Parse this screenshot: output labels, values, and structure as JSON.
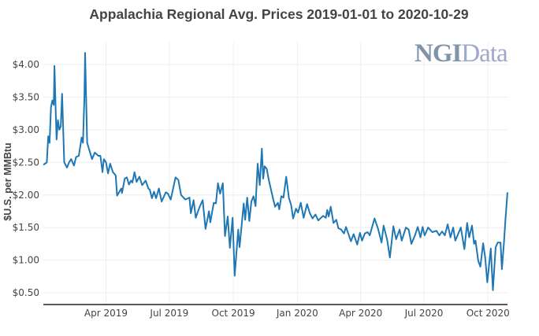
{
  "chart_data": {
    "type": "line",
    "title": "Appalachia Regional Avg. Prices 2019-01-01 to 2020-10-29",
    "xlabel": "",
    "ylabel": "$U.S. per MMBtu",
    "xlim": [
      "2019-01-01",
      "2020-10-29"
    ],
    "ylim": [
      0.32,
      4.35
    ],
    "grid": true,
    "line_color": "#1f77b4",
    "y_ticks": [
      {
        "value": 4.0,
        "label": "$4.00"
      },
      {
        "value": 3.5,
        "label": "$3.50"
      },
      {
        "value": 3.0,
        "label": "$3.00"
      },
      {
        "value": 2.5,
        "label": "$2.50"
      },
      {
        "value": 2.0,
        "label": "$2.00"
      },
      {
        "value": 1.5,
        "label": "$1.50"
      },
      {
        "value": 1.0,
        "label": "$1.00"
      },
      {
        "value": 0.5,
        "label": "$0.50"
      }
    ],
    "x_ticks": [
      {
        "value": "2019-04-01",
        "label": "Apr 2019"
      },
      {
        "value": "2019-07-01",
        "label": "Jul 2019"
      },
      {
        "value": "2019-10-01",
        "label": "Oct 2019"
      },
      {
        "value": "2020-01-01",
        "label": "Jan 2020"
      },
      {
        "value": "2020-04-01",
        "label": "Apr 2020"
      },
      {
        "value": "2020-07-01",
        "label": "Jul 2020"
      },
      {
        "value": "2020-10-01",
        "label": "Oct 2020"
      }
    ],
    "x": [
      "2019-01-01",
      "2019-01-06",
      "2019-01-08",
      "2019-01-10",
      "2019-01-12",
      "2019-01-14",
      "2019-01-16",
      "2019-01-17",
      "2019-01-19",
      "2019-01-20",
      "2019-01-22",
      "2019-01-24",
      "2019-01-26",
      "2019-01-28",
      "2019-01-31",
      "2019-02-04",
      "2019-02-07",
      "2019-02-10",
      "2019-02-14",
      "2019-02-17",
      "2019-02-21",
      "2019-02-25",
      "2019-02-27",
      "2019-03-01",
      "2019-03-02",
      "2019-03-05",
      "2019-03-12",
      "2019-03-16",
      "2019-03-21",
      "2019-03-24",
      "2019-03-27",
      "2019-03-29",
      "2019-04-01",
      "2019-04-04",
      "2019-04-07",
      "2019-04-11",
      "2019-04-15",
      "2019-04-17",
      "2019-04-23",
      "2019-04-24",
      "2019-04-28",
      "2019-05-01",
      "2019-05-04",
      "2019-05-07",
      "2019-05-09",
      "2019-05-12",
      "2019-05-15",
      "2019-05-19",
      "2019-05-23",
      "2019-05-28",
      "2019-06-01",
      "2019-06-03",
      "2019-06-06",
      "2019-06-09",
      "2019-06-12",
      "2019-06-16",
      "2019-06-20",
      "2019-06-26",
      "2019-06-29",
      "2019-07-03",
      "2019-07-10",
      "2019-07-14",
      "2019-07-18",
      "2019-07-24",
      "2019-07-30",
      "2019-08-01",
      "2019-08-05",
      "2019-08-08",
      "2019-08-13",
      "2019-08-18",
      "2019-08-22",
      "2019-08-27",
      "2019-08-29",
      "2019-09-03",
      "2019-09-06",
      "2019-09-09",
      "2019-09-12",
      "2019-09-16",
      "2019-09-19",
      "2019-09-23",
      "2019-09-26",
      "2019-09-30",
      "2019-10-03",
      "2019-10-08",
      "2019-10-10",
      "2019-10-16",
      "2019-10-18",
      "2019-10-21",
      "2019-10-24",
      "2019-10-27",
      "2019-10-30",
      "2019-11-02",
      "2019-11-05",
      "2019-11-08",
      "2019-11-11",
      "2019-11-13",
      "2019-11-15",
      "2019-11-18",
      "2019-11-21",
      "2019-11-27",
      "2019-11-30",
      "2019-12-04",
      "2019-12-06",
      "2019-12-09",
      "2019-12-12",
      "2019-12-16",
      "2019-12-20",
      "2019-12-23",
      "2019-12-26",
      "2019-12-30",
      "2020-01-02",
      "2020-01-06",
      "2020-01-10",
      "2020-01-15",
      "2020-01-19",
      "2020-01-23",
      "2020-01-27",
      "2020-01-31",
      "2020-02-07",
      "2020-02-11",
      "2020-02-13",
      "2020-02-15",
      "2020-02-18",
      "2020-02-22",
      "2020-02-26",
      "2020-02-29",
      "2020-03-04",
      "2020-03-08",
      "2020-03-11",
      "2020-03-18",
      "2020-03-22",
      "2020-03-27",
      "2020-03-31",
      "2020-04-03",
      "2020-04-07",
      "2020-04-11",
      "2020-04-14",
      "2020-04-21",
      "2020-04-26",
      "2020-05-01",
      "2020-05-04",
      "2020-05-09",
      "2020-05-13",
      "2020-05-18",
      "2020-05-22",
      "2020-05-27",
      "2020-05-30",
      "2020-06-05",
      "2020-06-09",
      "2020-06-13",
      "2020-06-18",
      "2020-06-22",
      "2020-06-26",
      "2020-06-29",
      "2020-07-02",
      "2020-07-07",
      "2020-07-13",
      "2020-07-19",
      "2020-07-23",
      "2020-07-27",
      "2020-07-31",
      "2020-08-04",
      "2020-08-08",
      "2020-08-12",
      "2020-08-15",
      "2020-08-19",
      "2020-08-23",
      "2020-08-28",
      "2020-09-01",
      "2020-09-04",
      "2020-09-08",
      "2020-09-11",
      "2020-09-13",
      "2020-09-17",
      "2020-09-20",
      "2020-09-24",
      "2020-09-27",
      "2020-09-30",
      "2020-10-05",
      "2020-10-08",
      "2020-10-12",
      "2020-10-15",
      "2020-10-19",
      "2020-10-21",
      "2020-10-24",
      "2020-10-26",
      "2020-10-29"
    ],
    "y": [
      2.46,
      2.5,
      2.9,
      2.8,
      3.35,
      3.45,
      3.38,
      3.98,
      3.2,
      2.85,
      3.15,
      3.0,
      3.05,
      3.55,
      2.5,
      2.42,
      2.5,
      2.55,
      2.45,
      2.58,
      2.6,
      2.88,
      2.8,
      3.5,
      4.18,
      2.8,
      2.55,
      2.65,
      2.6,
      2.6,
      2.35,
      2.55,
      2.5,
      2.33,
      2.48,
      2.35,
      2.3,
      1.99,
      2.1,
      2.03,
      2.25,
      2.27,
      2.16,
      2.22,
      2.19,
      2.35,
      2.2,
      2.28,
      2.15,
      2.22,
      2.1,
      2.08,
      1.95,
      2.05,
      1.95,
      2.1,
      1.9,
      2.04,
      2.02,
      1.93,
      2.27,
      2.23,
      2.0,
      1.93,
      1.96,
      1.72,
      1.92,
      1.65,
      1.8,
      1.92,
      1.48,
      1.75,
      1.58,
      1.88,
      1.87,
      2.18,
      2.02,
      2.18,
      1.37,
      1.67,
      1.19,
      1.65,
      0.76,
      1.47,
      1.2,
      1.87,
      1.62,
      1.96,
      1.6,
      1.9,
      1.98,
      1.83,
      2.48,
      2.15,
      2.71,
      2.25,
      2.44,
      2.4,
      2.23,
      1.95,
      1.82,
      1.88,
      1.78,
      1.98,
      1.96,
      2.28,
      1.95,
      1.85,
      1.64,
      1.79,
      1.73,
      1.88,
      1.65,
      1.86,
      1.72,
      1.64,
      1.7,
      1.61,
      1.68,
      1.65,
      1.77,
      1.67,
      1.82,
      1.57,
      1.62,
      1.49,
      1.47,
      1.41,
      1.51,
      1.29,
      1.4,
      1.24,
      1.42,
      1.3,
      1.41,
      1.43,
      1.38,
      1.64,
      1.48,
      1.27,
      1.53,
      1.32,
      1.04,
      1.52,
      1.32,
      1.47,
      1.3,
      1.5,
      1.47,
      1.25,
      1.38,
      1.51,
      1.35,
      1.51,
      1.38,
      1.5,
      1.43,
      1.45,
      1.38,
      1.44,
      1.38,
      1.55,
      1.35,
      1.5,
      1.3,
      1.4,
      1.5,
      1.17,
      1.57,
      1.35,
      1.53,
      1.25,
      1.3,
      0.99,
      0.9,
      1.26,
      1.04,
      0.66,
      1.18,
      0.54,
      1.2,
      1.27,
      1.27,
      0.86,
      1.28,
      1.62,
      2.04
    ]
  },
  "watermark": {
    "text": "NGIData",
    "part1": "NGI",
    "part2": "Data"
  }
}
